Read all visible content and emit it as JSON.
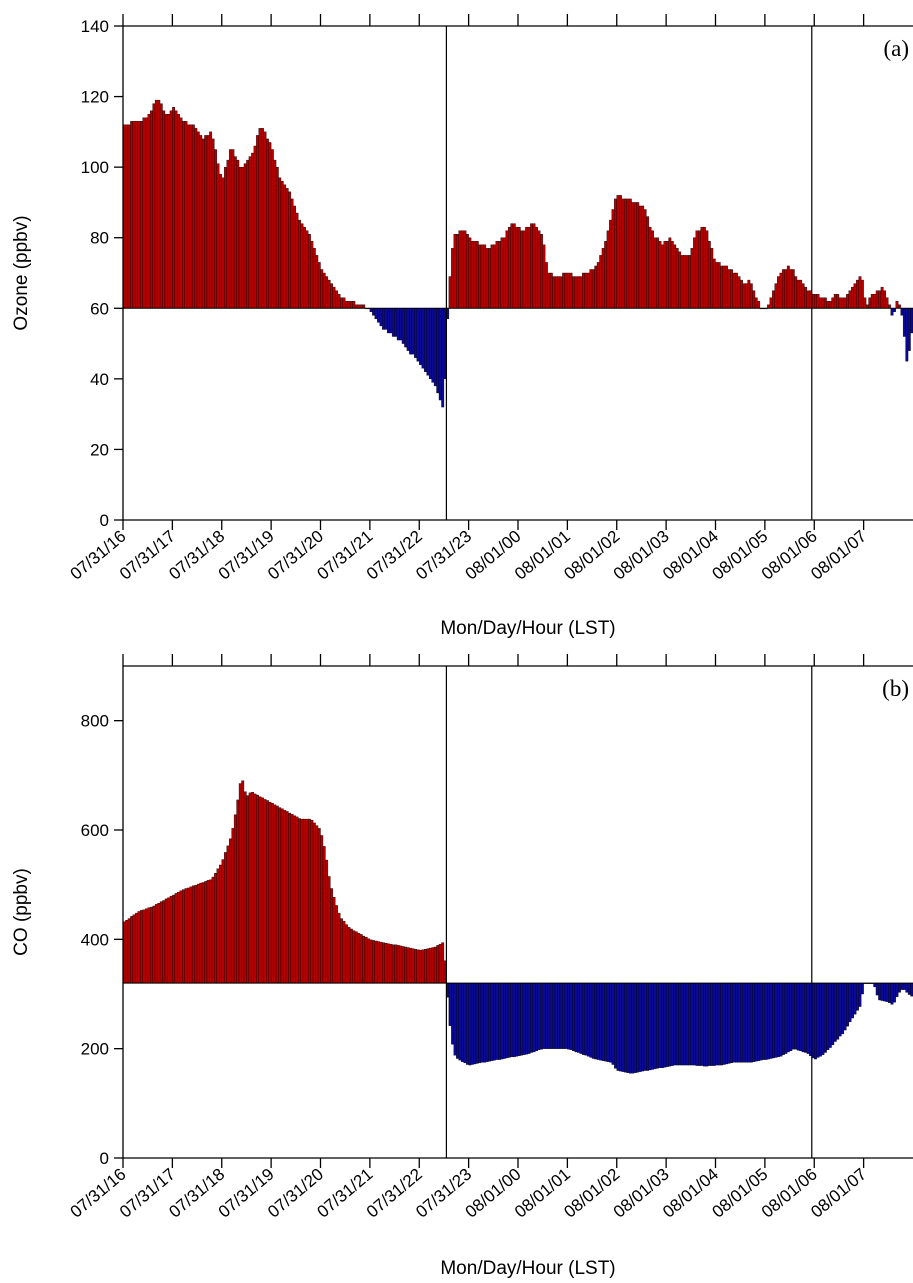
{
  "chart_data": [
    {
      "type": "bar",
      "panel_label": "(a)",
      "ylabel": "Ozone (ppbv)",
      "xlabel": "Mon/Day/Hour (LST)",
      "baseline": 60,
      "ylim": [
        0,
        140
      ],
      "yticks": [
        0,
        20,
        40,
        60,
        80,
        100,
        120,
        140
      ],
      "x_tick_labels": [
        "07/31/16",
        "07/31/17",
        "07/31/18",
        "07/31/19",
        "07/31/20",
        "07/31/21",
        "07/31/22",
        "07/31/23",
        "08/01/00",
        "08/01/01",
        "08/01/02",
        "08/01/03",
        "08/01/04",
        "08/01/05",
        "08/01/06",
        "08/01/07"
      ],
      "x_range_hours": [
        0,
        16
      ],
      "bars_per_hour": 20,
      "vertical_lines_hours": [
        6.55,
        13.95
      ],
      "colors": {
        "above": "#b50000",
        "below": "#0a0a96"
      },
      "anchors": [
        [
          0,
          112
        ],
        [
          0.3,
          113
        ],
        [
          0.5,
          114
        ],
        [
          0.7,
          120
        ],
        [
          0.9,
          114
        ],
        [
          1.0,
          117
        ],
        [
          1.2,
          113
        ],
        [
          1.4,
          112
        ],
        [
          1.6,
          108
        ],
        [
          1.8,
          110
        ],
        [
          2.0,
          96
        ],
        [
          2.2,
          106
        ],
        [
          2.4,
          99
        ],
        [
          2.6,
          103
        ],
        [
          2.8,
          112
        ],
        [
          3.0,
          106
        ],
        [
          3.2,
          96
        ],
        [
          3.4,
          92
        ],
        [
          3.6,
          84
        ],
        [
          3.8,
          80
        ],
        [
          4.0,
          72
        ],
        [
          4.2,
          67
        ],
        [
          4.4,
          63
        ],
        [
          4.6,
          62
        ],
        [
          4.8,
          61
        ],
        [
          5.0,
          60
        ],
        [
          5.1,
          58
        ],
        [
          5.2,
          55
        ],
        [
          5.4,
          53
        ],
        [
          5.6,
          51
        ],
        [
          5.8,
          48
        ],
        [
          6.0,
          44
        ],
        [
          6.2,
          41
        ],
        [
          6.35,
          37
        ],
        [
          6.5,
          31
        ],
        [
          6.6,
          65
        ],
        [
          6.7,
          81
        ],
        [
          6.9,
          82
        ],
        [
          7.1,
          79
        ],
        [
          7.4,
          77
        ],
        [
          7.7,
          80
        ],
        [
          7.9,
          84
        ],
        [
          8.1,
          82
        ],
        [
          8.3,
          84
        ],
        [
          8.5,
          81
        ],
        [
          8.6,
          70
        ],
        [
          8.8,
          69
        ],
        [
          9.0,
          70
        ],
        [
          9.2,
          69
        ],
        [
          9.4,
          70
        ],
        [
          9.6,
          72
        ],
        [
          9.8,
          80
        ],
        [
          9.9,
          87
        ],
        [
          10.0,
          92
        ],
        [
          10.2,
          91
        ],
        [
          10.4,
          90
        ],
        [
          10.6,
          88
        ],
        [
          10.7,
          82
        ],
        [
          10.9,
          78
        ],
        [
          11.1,
          80
        ],
        [
          11.3,
          75
        ],
        [
          11.5,
          75
        ],
        [
          11.6,
          82
        ],
        [
          11.8,
          83
        ],
        [
          12.0,
          73
        ],
        [
          12.2,
          72
        ],
        [
          12.4,
          70
        ],
        [
          12.6,
          67
        ],
        [
          12.7,
          68
        ],
        [
          12.8,
          64
        ],
        [
          12.9,
          61
        ],
        [
          13.0,
          59
        ],
        [
          13.1,
          62
        ],
        [
          13.3,
          70
        ],
        [
          13.5,
          72
        ],
        [
          13.7,
          68
        ],
        [
          13.9,
          65
        ],
        [
          14.0,
          64
        ],
        [
          14.3,
          62
        ],
        [
          14.4,
          64
        ],
        [
          14.6,
          63
        ],
        [
          14.8,
          66
        ],
        [
          14.95,
          70
        ],
        [
          15.05,
          61
        ],
        [
          15.2,
          64
        ],
        [
          15.4,
          66
        ],
        [
          15.5,
          62
        ],
        [
          15.6,
          57
        ],
        [
          15.7,
          63
        ],
        [
          15.8,
          56
        ],
        [
          15.85,
          47
        ],
        [
          15.9,
          43
        ],
        [
          15.95,
          53
        ],
        [
          16.0,
          52
        ]
      ]
    },
    {
      "type": "bar",
      "panel_label": "(b)",
      "ylabel": "CO (ppbv)",
      "xlabel": "Mon/Day/Hour (LST)",
      "baseline": 320,
      "ylim": [
        0,
        900
      ],
      "yticks": [
        0,
        200,
        400,
        600,
        800
      ],
      "x_tick_labels": [
        "07/31/16",
        "07/31/17",
        "07/31/18",
        "07/31/19",
        "07/31/20",
        "07/31/21",
        "07/31/22",
        "07/31/23",
        "08/01/00",
        "08/01/01",
        "08/01/02",
        "08/01/03",
        "08/01/04",
        "08/01/05",
        "08/01/06",
        "08/01/07"
      ],
      "x_range_hours": [
        0,
        16
      ],
      "bars_per_hour": 20,
      "vertical_lines_hours": [
        6.55,
        13.95
      ],
      "colors": {
        "above": "#b50000",
        "below": "#0a0a96"
      },
      "anchors": [
        [
          0,
          430
        ],
        [
          0.3,
          450
        ],
        [
          0.6,
          460
        ],
        [
          0.9,
          475
        ],
        [
          1.2,
          490
        ],
        [
          1.5,
          500
        ],
        [
          1.8,
          510
        ],
        [
          2.0,
          540
        ],
        [
          2.2,
          590
        ],
        [
          2.3,
          640
        ],
        [
          2.4,
          700
        ],
        [
          2.5,
          660
        ],
        [
          2.6,
          670
        ],
        [
          2.8,
          660
        ],
        [
          3.0,
          650
        ],
        [
          3.2,
          640
        ],
        [
          3.4,
          630
        ],
        [
          3.6,
          620
        ],
        [
          3.8,
          620
        ],
        [
          4.0,
          600
        ],
        [
          4.1,
          560
        ],
        [
          4.2,
          500
        ],
        [
          4.3,
          470
        ],
        [
          4.4,
          440
        ],
        [
          4.6,
          420
        ],
        [
          4.8,
          410
        ],
        [
          5.0,
          400
        ],
        [
          5.2,
          395
        ],
        [
          5.5,
          390
        ],
        [
          5.8,
          385
        ],
        [
          6.0,
          380
        ],
        [
          6.3,
          385
        ],
        [
          6.5,
          395
        ],
        [
          6.6,
          260
        ],
        [
          6.7,
          190
        ],
        [
          6.8,
          180
        ],
        [
          7.0,
          170
        ],
        [
          7.3,
          175
        ],
        [
          7.6,
          180
        ],
        [
          7.9,
          185
        ],
        [
          8.2,
          190
        ],
        [
          8.5,
          200
        ],
        [
          8.8,
          200
        ],
        [
          9.0,
          200
        ],
        [
          9.3,
          190
        ],
        [
          9.6,
          180
        ],
        [
          9.9,
          175
        ],
        [
          10.0,
          160
        ],
        [
          10.3,
          155
        ],
        [
          10.6,
          160
        ],
        [
          10.9,
          165
        ],
        [
          11.2,
          170
        ],
        [
          11.5,
          170
        ],
        [
          11.8,
          168
        ],
        [
          12.1,
          170
        ],
        [
          12.4,
          175
        ],
        [
          12.7,
          175
        ],
        [
          13.0,
          180
        ],
        [
          13.3,
          185
        ],
        [
          13.6,
          200
        ],
        [
          13.9,
          190
        ],
        [
          14.0,
          180
        ],
        [
          14.2,
          190
        ],
        [
          14.4,
          210
        ],
        [
          14.6,
          230
        ],
        [
          14.8,
          260
        ],
        [
          14.95,
          280
        ],
        [
          15.0,
          320
        ],
        [
          15.2,
          320
        ],
        [
          15.3,
          290
        ],
        [
          15.5,
          285
        ],
        [
          15.6,
          280
        ],
        [
          15.7,
          300
        ],
        [
          15.8,
          310
        ],
        [
          15.9,
          300
        ],
        [
          16.0,
          295
        ]
      ]
    }
  ]
}
